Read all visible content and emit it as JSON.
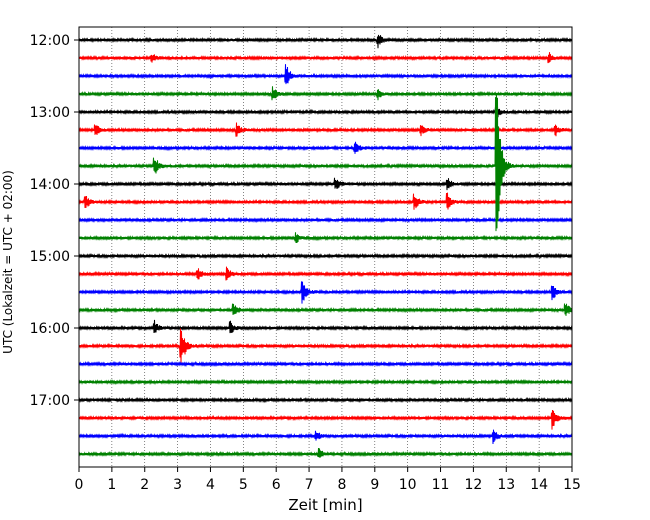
{
  "chart_data": {
    "type": "line",
    "title": "",
    "xlabel": "Zeit  [min]",
    "ylabel": "UTC (Lokalzeit = UTC + 02:00)",
    "xlim": [
      0,
      15
    ],
    "x_ticks": [
      "0",
      "1",
      "2",
      "3",
      "4",
      "5",
      "6",
      "7",
      "8",
      "9",
      "10",
      "11",
      "12",
      "13",
      "14",
      "15"
    ],
    "y_tick_labels": [
      "12:00",
      "13:00",
      "14:00",
      "15:00",
      "16:00",
      "17:00"
    ],
    "vertical_grid": "dotted",
    "trace_interval_minutes": 15,
    "colors": {
      "black": "#000000",
      "red": "#ff0000",
      "blue": "#0000ff",
      "green": "#008000"
    },
    "series": [
      {
        "start": "12:00",
        "color": "black",
        "events": [
          {
            "t": 9.1,
            "amp": 0.4
          }
        ]
      },
      {
        "start": "12:15",
        "color": "red",
        "events": [
          {
            "t": 2.2,
            "amp": 0.3
          },
          {
            "t": 14.3,
            "amp": 0.3
          }
        ]
      },
      {
        "start": "12:30",
        "color": "blue",
        "events": [
          {
            "t": 6.3,
            "amp": 0.7
          }
        ]
      },
      {
        "start": "12:45",
        "color": "green",
        "events": [
          {
            "t": 5.9,
            "amp": 0.4
          },
          {
            "t": 9.1,
            "amp": 0.3
          }
        ]
      },
      {
        "start": "13:00",
        "color": "black",
        "events": [
          {
            "t": 12.7,
            "amp": 0.4
          }
        ]
      },
      {
        "start": "13:15",
        "color": "red",
        "events": [
          {
            "t": 0.5,
            "amp": 0.4
          },
          {
            "t": 4.8,
            "amp": 0.4
          },
          {
            "t": 10.4,
            "amp": 0.3
          },
          {
            "t": 14.5,
            "amp": 0.3
          }
        ]
      },
      {
        "start": "13:30",
        "color": "blue",
        "events": [
          {
            "t": 8.4,
            "amp": 0.4
          }
        ]
      },
      {
        "start": "13:45",
        "color": "green",
        "events": [
          {
            "t": 2.3,
            "amp": 0.6
          },
          {
            "t": 12.7,
            "amp": 6.0
          }
        ]
      },
      {
        "start": "14:00",
        "color": "black",
        "events": [
          {
            "t": 7.8,
            "amp": 0.4
          },
          {
            "t": 11.2,
            "amp": 0.4
          }
        ]
      },
      {
        "start": "14:15",
        "color": "red",
        "events": [
          {
            "t": 0.2,
            "amp": 0.4
          },
          {
            "t": 10.2,
            "amp": 0.5
          },
          {
            "t": 11.2,
            "amp": 0.5
          }
        ]
      },
      {
        "start": "14:30",
        "color": "blue",
        "events": []
      },
      {
        "start": "14:45",
        "color": "green",
        "events": [
          {
            "t": 6.6,
            "amp": 0.3
          }
        ]
      },
      {
        "start": "15:00",
        "color": "black",
        "events": []
      },
      {
        "start": "15:15",
        "color": "red",
        "events": [
          {
            "t": 3.6,
            "amp": 0.4
          },
          {
            "t": 4.5,
            "amp": 0.4
          }
        ]
      },
      {
        "start": "15:30",
        "color": "blue",
        "events": [
          {
            "t": 6.8,
            "amp": 0.7
          },
          {
            "t": 14.4,
            "amp": 0.5
          }
        ]
      },
      {
        "start": "15:45",
        "color": "green",
        "events": [
          {
            "t": 4.7,
            "amp": 0.4
          },
          {
            "t": 14.8,
            "amp": 0.5
          }
        ]
      },
      {
        "start": "16:00",
        "color": "black",
        "events": [
          {
            "t": 2.3,
            "amp": 0.4
          },
          {
            "t": 4.6,
            "amp": 0.4
          }
        ]
      },
      {
        "start": "16:15",
        "color": "red",
        "events": [
          {
            "t": 3.1,
            "amp": 1.4
          }
        ]
      },
      {
        "start": "16:30",
        "color": "blue",
        "events": []
      },
      {
        "start": "16:45",
        "color": "green",
        "events": []
      },
      {
        "start": "17:00",
        "color": "black",
        "events": []
      },
      {
        "start": "17:15",
        "color": "red",
        "events": [
          {
            "t": 14.4,
            "amp": 0.7
          }
        ]
      },
      {
        "start": "17:30",
        "color": "blue",
        "events": [
          {
            "t": 7.2,
            "amp": 0.3
          },
          {
            "t": 12.6,
            "amp": 0.4
          }
        ]
      },
      {
        "start": "17:45",
        "color": "green",
        "events": [
          {
            "t": 7.3,
            "amp": 0.3
          }
        ]
      }
    ]
  }
}
